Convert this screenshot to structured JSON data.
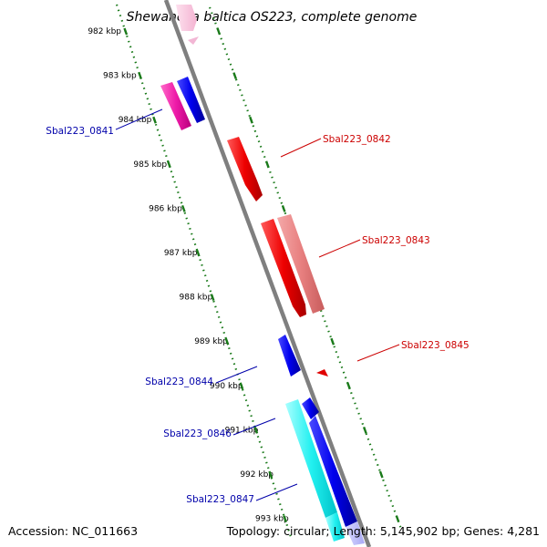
{
  "header": {
    "title": "Shewanella baltica OS223, complete genome"
  },
  "footer": {
    "accession": "Accession: NC_011663",
    "topology": "Topology: circular; Length: 5,145,902 bp; Genes: 4,281"
  },
  "colors": {
    "backbone": "#808080",
    "tick": "#1a7a1a",
    "forward_gene": "#e00000",
    "reverse_gene": "#0000dd",
    "forward_label": "#cc0000",
    "reverse_label": "#0000aa"
  },
  "position_ticks": [
    {
      "label": "982 kbp",
      "kbp": 982
    },
    {
      "label": "983 kbp",
      "kbp": 983
    },
    {
      "label": "984 kbp",
      "kbp": 984
    },
    {
      "label": "985 kbp",
      "kbp": 985
    },
    {
      "label": "986 kbp",
      "kbp": 986
    },
    {
      "label": "987 kbp",
      "kbp": 987
    },
    {
      "label": "988 kbp",
      "kbp": 988
    },
    {
      "label": "989 kbp",
      "kbp": 989
    },
    {
      "label": "990 kbp",
      "kbp": 990
    },
    {
      "label": "991 kbp",
      "kbp": 991
    },
    {
      "label": "992 kbp",
      "kbp": 992
    },
    {
      "label": "993 kbp",
      "kbp": 993
    }
  ],
  "gene_labels": [
    {
      "text": "Sbal223_0841",
      "strand": "reverse"
    },
    {
      "text": "Sbal223_0842",
      "strand": "forward"
    },
    {
      "text": "Sbal223_0843",
      "strand": "forward"
    },
    {
      "text": "Sbal223_0845",
      "strand": "forward"
    },
    {
      "text": "Sbal223_0844",
      "strand": "reverse"
    },
    {
      "text": "Sbal223_0846",
      "strand": "reverse"
    },
    {
      "text": "Sbal223_0847",
      "strand": "reverse"
    }
  ]
}
